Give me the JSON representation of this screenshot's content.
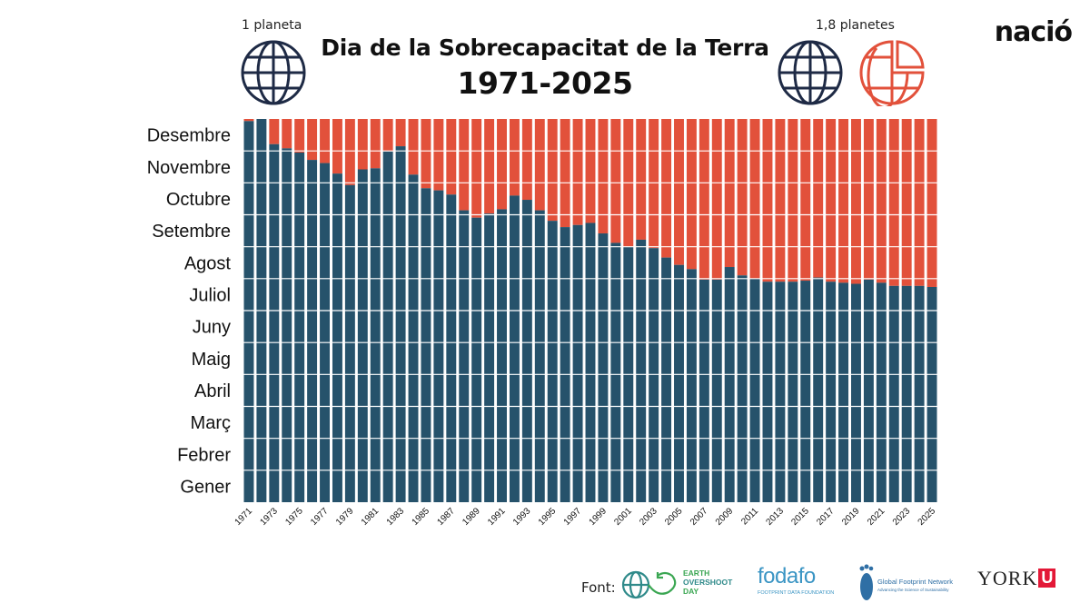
{
  "header": {
    "title": "Dia de la Sobrecapacitat de la Terra",
    "subtitle": "1971-2025",
    "left_label": "1 planeta",
    "right_label": "1,8 planetes",
    "brand": "nació"
  },
  "footer": {
    "source_label": "Font:",
    "logos": {
      "eod_line1": "EARTH",
      "eod_line2": "OVERSHOOT",
      "eod_line3": "DAY",
      "fodafo_name": "fodafo",
      "fodafo_tagline": "FOOTPRINT DATA FOUNDATION",
      "gfn_name": "Global Footprint Network",
      "gfn_tagline": "Advancing the Science of Sustainability",
      "york_name": "YORK",
      "york_mark": "U"
    }
  },
  "colors": {
    "blue": "#26526b",
    "red": "#e2513b",
    "globe_blue": "#1e2a45",
    "globe_red": "#e2513b"
  },
  "chart_data": {
    "type": "bar",
    "stacked": true,
    "x": [
      1971,
      1972,
      1973,
      1974,
      1975,
      1976,
      1977,
      1978,
      1979,
      1980,
      1981,
      1982,
      1983,
      1984,
      1985,
      1986,
      1987,
      1988,
      1989,
      1990,
      1991,
      1992,
      1993,
      1994,
      1995,
      1996,
      1997,
      1998,
      1999,
      2000,
      2001,
      2002,
      2003,
      2004,
      2005,
      2006,
      2007,
      2008,
      2009,
      2010,
      2011,
      2012,
      2013,
      2014,
      2015,
      2016,
      2017,
      2018,
      2019,
      2020,
      2021,
      2022,
      2023,
      2024,
      2025
    ],
    "xtick_labels": [
      "1971",
      "1973",
      "1975",
      "1977",
      "1979",
      "1981",
      "1983",
      "1985",
      "1987",
      "1989",
      "1991",
      "1993",
      "1995",
      "1997",
      "1999",
      "2001",
      "2003",
      "2005",
      "2007",
      "2009",
      "2011",
      "2013",
      "2015",
      "2017",
      "2019",
      "2021",
      "2023",
      "2025"
    ],
    "y_categories": [
      "Gener",
      "Febrer",
      "Març",
      "Abril",
      "Maig",
      "Juny",
      "Juliol",
      "Agost",
      "Setembre",
      "Octubre",
      "Novembre",
      "Desembre"
    ],
    "ylim": [
      0,
      365
    ],
    "y_unit": "day of year",
    "overshoot_day": [
      363,
      365,
      341,
      337,
      333,
      326,
      323,
      313,
      302,
      317,
      318,
      334,
      339,
      312,
      299,
      297,
      293,
      278,
      271,
      275,
      279,
      292,
      288,
      278,
      268,
      262,
      264,
      266,
      256,
      247,
      243,
      250,
      242,
      233,
      226,
      222,
      212,
      212,
      224,
      216,
      213,
      210,
      210,
      210,
      211,
      214,
      210,
      209,
      208,
      212,
      209,
      206,
      206,
      206,
      205
    ],
    "series": [
      {
        "name": "",
        "note_role": "before_overshoot",
        "color": "#26526b"
      },
      {
        "name": "",
        "note_role": "after_overshoot",
        "color": "#e2513b"
      }
    ],
    "grid": "horizontal month lines"
  }
}
